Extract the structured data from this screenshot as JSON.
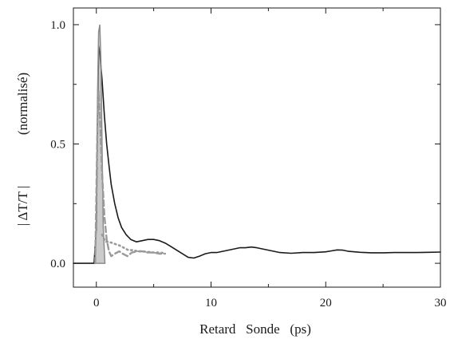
{
  "chart_data": {
    "type": "line",
    "xlabel": "Retard   Sonde   (ps)",
    "ylabel_left": "| ΔT/T |",
    "ylabel_right": "(normalisé)",
    "xlim": [
      -2,
      30
    ],
    "ylim": [
      -0.1,
      1.07
    ],
    "xticks": [
      0,
      10,
      20,
      30
    ],
    "xtick_labels": [
      "0",
      "10",
      "20",
      "30"
    ],
    "yticks": [
      0.0,
      0.5,
      1.0
    ],
    "ytick_labels": [
      "0.0",
      "0.5",
      "1.0"
    ],
    "grid": false,
    "legend": "none",
    "series": [
      {
        "style": "solid",
        "color": "#1a1a1a",
        "x": [
          -2,
          -0.2,
          0.0,
          0.1,
          0.2,
          0.3,
          0.5,
          0.7,
          0.9,
          1.1,
          1.3,
          1.6,
          1.9,
          2.2,
          2.6,
          3.0,
          3.5,
          4.0,
          4.5,
          5.0,
          5.5,
          6.0,
          6.5,
          7.0,
          7.5,
          8.0,
          8.5,
          9.0,
          9.5,
          10.0,
          10.5,
          11.0,
          11.5,
          12.0,
          12.5,
          13.0,
          13.5,
          14.0,
          14.5,
          15.0,
          15.5,
          16.0,
          17.0,
          18.0,
          19.0,
          20.0,
          20.5,
          21.0,
          21.5,
          22.0,
          23.0,
          24.0,
          25.0,
          26.0,
          27.0,
          28.0,
          29.0,
          30.0
        ],
        "y": [
          0.0,
          0.0,
          0.15,
          0.6,
          0.91,
          0.88,
          0.77,
          0.62,
          0.5,
          0.41,
          0.33,
          0.25,
          0.19,
          0.15,
          0.12,
          0.1,
          0.09,
          0.095,
          0.1,
          0.1,
          0.095,
          0.085,
          0.07,
          0.055,
          0.04,
          0.025,
          0.022,
          0.03,
          0.04,
          0.045,
          0.045,
          0.05,
          0.055,
          0.06,
          0.065,
          0.065,
          0.068,
          0.065,
          0.06,
          0.055,
          0.05,
          0.045,
          0.042,
          0.045,
          0.045,
          0.048,
          0.052,
          0.056,
          0.055,
          0.05,
          0.046,
          0.044,
          0.044,
          0.045,
          0.045,
          0.045,
          0.046,
          0.047
        ]
      },
      {
        "style": "filled-peak",
        "color": "#8c8c8c",
        "x": [
          -0.1,
          0.0,
          0.1,
          0.2,
          0.3,
          0.4,
          0.5,
          0.6,
          0.75
        ],
        "y": [
          0.0,
          0.2,
          0.7,
          0.97,
          1.0,
          0.85,
          0.5,
          0.15,
          0.0
        ]
      },
      {
        "style": "dashed",
        "color": "#9a9a9a",
        "x": [
          -0.1,
          0.0,
          0.1,
          0.2,
          0.3,
          0.5,
          0.7,
          0.9,
          1.1,
          1.3,
          1.6,
          2.0,
          2.3,
          2.7,
          3.1,
          3.6,
          4.0,
          4.5,
          5.0,
          5.5,
          6.0
        ],
        "y": [
          0.0,
          0.3,
          0.6,
          0.72,
          0.62,
          0.38,
          0.2,
          0.1,
          0.05,
          0.03,
          0.04,
          0.05,
          0.04,
          0.03,
          0.045,
          0.05,
          0.05,
          0.045,
          0.045,
          0.04,
          0.04
        ]
      },
      {
        "style": "dotted",
        "color": "#9a9a9a",
        "x": [
          0.5,
          0.8,
          1.1,
          1.4,
          1.7,
          2.0,
          2.4,
          2.8,
          3.2,
          3.6,
          4.0,
          4.5,
          5.0,
          5.5,
          6.0
        ],
        "y": [
          0.12,
          0.09,
          0.09,
          0.085,
          0.08,
          0.075,
          0.065,
          0.055,
          0.055,
          0.05,
          0.05,
          0.048,
          0.045,
          0.045,
          0.042
        ]
      }
    ]
  }
}
